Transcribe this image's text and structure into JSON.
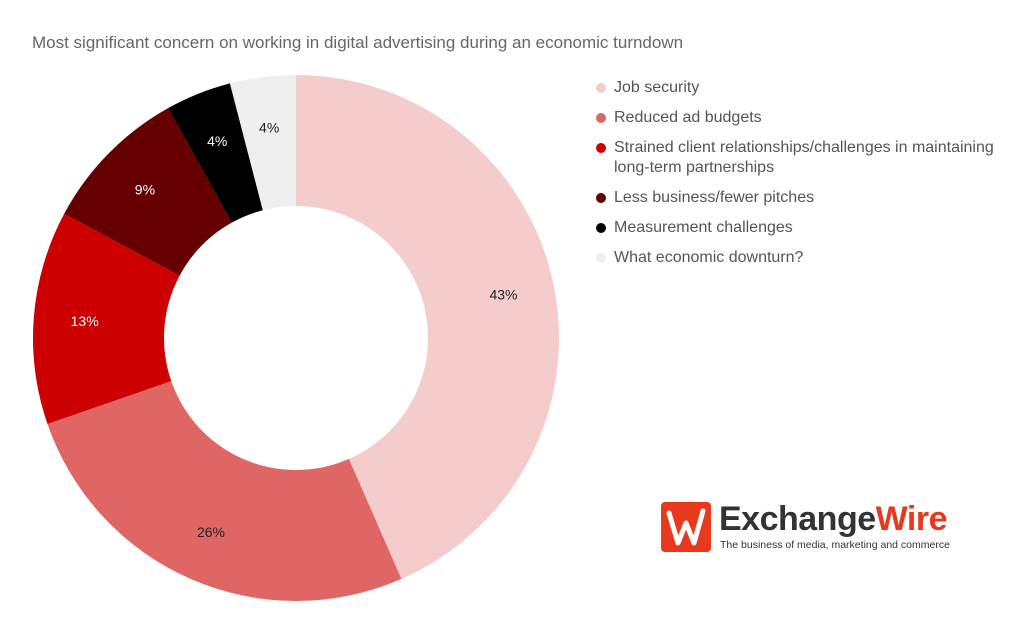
{
  "chart_data": {
    "type": "pie",
    "title": "Most significant concern on working in digital advertising during an economic turndown",
    "legend_position": "right",
    "slices": [
      {
        "label": "Job security",
        "value": 43,
        "display": "43%",
        "color": "#f4cccc",
        "text_color": "#222222"
      },
      {
        "label": "Reduced ad budgets",
        "value": 26,
        "display": "26%",
        "color": "#e06666",
        "text_color": "#222222"
      },
      {
        "label": "Strained client relationships/challenges in maintaining long-term partnerships",
        "value": 13,
        "display": "13%",
        "color": "#cc0000",
        "text_color": "#ffffff"
      },
      {
        "label": "Less business/fewer pitches",
        "value": 9,
        "display": "9%",
        "color": "#660000",
        "text_color": "#ffffff"
      },
      {
        "label": "Measurement challenges",
        "value": 4,
        "display": "4%",
        "color": "#000000",
        "text_color": "#ffffff"
      },
      {
        "label": "What economic downturn?",
        "value": 4,
        "display": "4%",
        "color": "#efefef",
        "text_color": "#222222"
      }
    ]
  },
  "logo": {
    "name_part1": "Exchange",
    "name_part2": "Wire",
    "tagline": "The business of media, marketing and commerce",
    "brand_color": "#e8391f",
    "icon": "exchangewire-w-logo-icon"
  }
}
